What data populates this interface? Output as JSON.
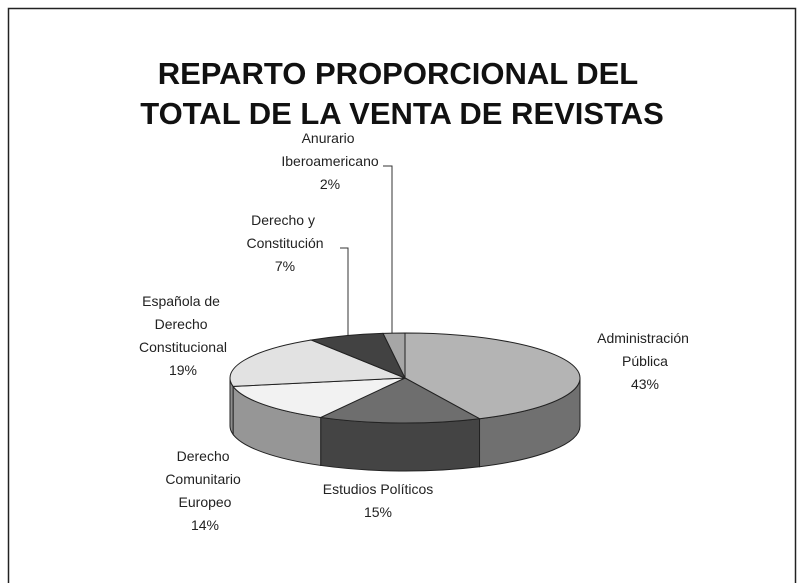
{
  "chart_data": {
    "type": "pie3d",
    "title": "REPARTO PROPORCIONAL DEL TOTAL DE LA VENTA DE REVISTAS",
    "categories": [
      "Administración Pública",
      "Estudios Políticos",
      "Derecho Comunitario Europeo",
      "Española de Derecho Constitucional",
      "Derecho y Constitución",
      "Anurario Iberoamericano"
    ],
    "values": [
      43,
      15,
      14,
      19,
      7,
      2
    ],
    "value_labels": [
      "43%",
      "15%",
      "14%",
      "19%",
      "7%",
      "2%"
    ],
    "colors": [
      "#b4b4b4",
      "#6e6e6e",
      "#f2f2f2",
      "#e2e2e2",
      "#424242",
      "#a6a6a6"
    ]
  }
}
